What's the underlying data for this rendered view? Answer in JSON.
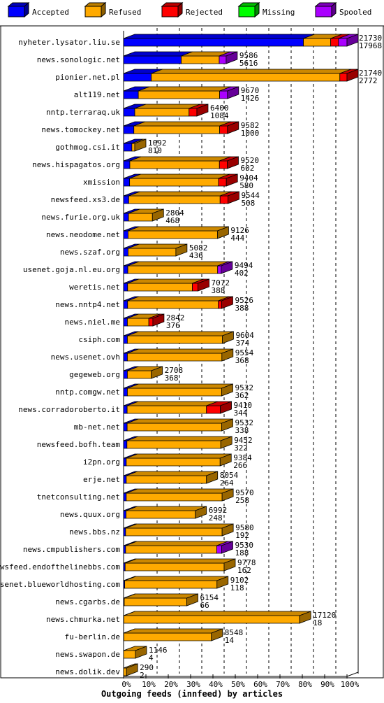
{
  "chart_data": {
    "type": "bar",
    "orientation": "horizontal",
    "stacked": true,
    "title": "Outgoing feeds (innfeed) by articles",
    "xlim": [
      0,
      100
    ],
    "x_ticks": [
      "0%",
      "10%",
      "20%",
      "30%",
      "40%",
      "50%",
      "60%",
      "70%",
      "80%",
      "90%",
      "100%"
    ],
    "grid": true,
    "legend_position": "top",
    "series": [
      {
        "name": "Accepted",
        "color": "#0000ff"
      },
      {
        "name": "Refused",
        "color": "#ffaa00"
      },
      {
        "name": "Rejected",
        "color": "#ff0000"
      },
      {
        "name": "Missing",
        "color": "#00ff00"
      },
      {
        "name": "Spooled",
        "color": "#aa00ff"
      }
    ],
    "rows": [
      {
        "label": "nyheter.lysator.liu.se",
        "total": "21730",
        "accepted": "17968",
        "values": [
          80.5,
          12.2,
          3.5,
          0,
          3.8
        ]
      },
      {
        "label": "news.sonologic.net",
        "total": "9586",
        "accepted": "5616",
        "values": [
          25.8,
          17.0,
          0,
          0,
          3.1
        ]
      },
      {
        "label": "pionier.net.pl",
        "total": "21740",
        "accepted": "2772",
        "values": [
          12.4,
          84.4,
          3.2,
          0,
          0
        ]
      },
      {
        "label": "alt119.net",
        "total": "9670",
        "accepted": "1426",
        "values": [
          6.6,
          36.4,
          0,
          0,
          3.5
        ]
      },
      {
        "label": "nntp.terraraq.uk",
        "total": "6400",
        "accepted": "1084",
        "values": [
          5.0,
          24.3,
          3.5,
          0,
          0
        ]
      },
      {
        "label": "news.tomockey.net",
        "total": "9582",
        "accepted": "1000",
        "values": [
          4.6,
          38.4,
          3.5,
          0,
          0
        ]
      },
      {
        "label": "gothmog.csi.it",
        "total": "1092",
        "accepted": "810",
        "values": [
          3.7,
          1.3,
          0,
          0,
          0
        ]
      },
      {
        "label": "news.hispagatos.org",
        "total": "9520",
        "accepted": "602",
        "values": [
          2.8,
          40.1,
          3.5,
          0,
          0
        ]
      },
      {
        "label": "xmission",
        "total": "9404",
        "accepted": "580",
        "values": [
          2.7,
          39.8,
          3.5,
          0,
          0
        ]
      },
      {
        "label": "newsfeed.xs3.de",
        "total": "9544",
        "accepted": "508",
        "values": [
          2.3,
          40.9,
          3.5,
          0,
          0
        ]
      },
      {
        "label": "news.furie.org.uk",
        "total": "2804",
        "accepted": "468",
        "values": [
          2.2,
          10.7,
          0,
          0,
          0
        ]
      },
      {
        "label": "news.neodome.net",
        "total": "9126",
        "accepted": "444",
        "values": [
          2.0,
          40.0,
          0,
          0,
          0
        ]
      },
      {
        "label": "news.szaf.org",
        "total": "5082",
        "accepted": "436",
        "values": [
          2.0,
          21.4,
          0,
          0,
          0
        ]
      },
      {
        "label": "usenet.goja.nl.eu.org",
        "total": "9494",
        "accepted": "402",
        "values": [
          1.9,
          40.2,
          0,
          0,
          1.6
        ]
      },
      {
        "label": "weretis.net",
        "total": "7072",
        "accepted": "388",
        "values": [
          1.8,
          29.0,
          2.5,
          0,
          0
        ]
      },
      {
        "label": "news.nntp4.net",
        "total": "9526",
        "accepted": "388",
        "values": [
          1.8,
          40.6,
          1.5,
          0,
          0
        ]
      },
      {
        "label": "news.niel.me",
        "total": "2842",
        "accepted": "376",
        "values": [
          1.7,
          9.6,
          1.8,
          0,
          0
        ]
      },
      {
        "label": "csiph.com",
        "total": "9604",
        "accepted": "374",
        "values": [
          1.7,
          42.5,
          0,
          0,
          0
        ]
      },
      {
        "label": "news.usenet.ovh",
        "total": "9554",
        "accepted": "368",
        "values": [
          1.7,
          42.3,
          0,
          0,
          0
        ]
      },
      {
        "label": "gegeweb.org",
        "total": "2708",
        "accepted": "368",
        "values": [
          1.7,
          10.7,
          0,
          0,
          0
        ]
      },
      {
        "label": "nntp.comgw.net",
        "total": "9532",
        "accepted": "362",
        "values": [
          1.7,
          42.2,
          0,
          0,
          0
        ]
      },
      {
        "label": "news.corradoroberto.it",
        "total": "9410",
        "accepted": "344",
        "values": [
          1.6,
          35.5,
          6.2,
          0,
          0
        ]
      },
      {
        "label": "mb-net.net",
        "total": "9532",
        "accepted": "338",
        "values": [
          1.6,
          42.3,
          0,
          0,
          0
        ]
      },
      {
        "label": "newsfeed.bofh.team",
        "total": "9452",
        "accepted": "322",
        "values": [
          1.5,
          42.0,
          0,
          0,
          0
        ]
      },
      {
        "label": "i2pn.org",
        "total": "9384",
        "accepted": "266",
        "values": [
          1.2,
          42.0,
          0,
          0,
          0
        ]
      },
      {
        "label": "erje.net",
        "total": "8054",
        "accepted": "264",
        "values": [
          1.2,
          35.9,
          0,
          0,
          0
        ]
      },
      {
        "label": "tnetconsulting.net",
        "total": "9570",
        "accepted": "258",
        "values": [
          1.2,
          42.9,
          0,
          0,
          0
        ]
      },
      {
        "label": "news.quux.org",
        "total": "6992",
        "accepted": "248",
        "values": [
          1.1,
          31.0,
          0,
          0,
          0
        ]
      },
      {
        "label": "news.bbs.nz",
        "total": "9580",
        "accepted": "192",
        "values": [
          0.9,
          43.2,
          0,
          0,
          0
        ]
      },
      {
        "label": "news.cmpublishers.com",
        "total": "9530",
        "accepted": "188",
        "values": [
          0.9,
          40.8,
          0,
          0,
          2.2
        ]
      },
      {
        "label": "newsfeed.endofthelinebbs.com",
        "total": "9778",
        "accepted": "162",
        "values": [
          0.7,
          44.3,
          0,
          0,
          0
        ]
      },
      {
        "label": "usenet.blueworldhosting.com",
        "total": "9102",
        "accepted": "118",
        "values": [
          0.5,
          41.3,
          0,
          0,
          0
        ]
      },
      {
        "label": "news.cgarbs.de",
        "total": "6154",
        "accepted": "66",
        "values": [
          0.3,
          28.0,
          0,
          0,
          0
        ]
      },
      {
        "label": "news.chmurka.net",
        "total": "17120",
        "accepted": "18",
        "values": [
          0.1,
          78.7,
          0,
          0,
          0
        ]
      },
      {
        "label": "fu-berlin.de",
        "total": "8548",
        "accepted": "14",
        "values": [
          0.1,
          39.2,
          0,
          0,
          0
        ]
      },
      {
        "label": "news.swapon.de",
        "total": "1146",
        "accepted": "4",
        "values": [
          0.0,
          5.3,
          0,
          0,
          0
        ]
      },
      {
        "label": "news.dolik.dev",
        "total": "290",
        "accepted": "2",
        "values": [
          0.0,
          1.3,
          0,
          0,
          0
        ]
      }
    ]
  }
}
